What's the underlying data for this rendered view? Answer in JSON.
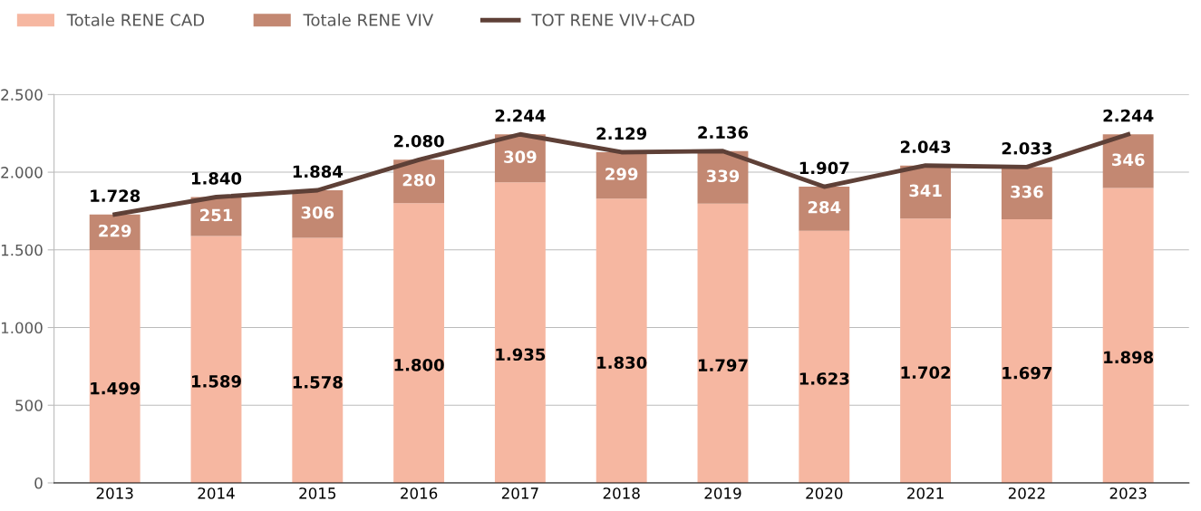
{
  "chart_data": {
    "type": "bar",
    "stacked": true,
    "categories": [
      "2013",
      "2014",
      "2015",
      "2016",
      "2017",
      "2018",
      "2019",
      "2020",
      "2021",
      "2022",
      "2023"
    ],
    "series": [
      {
        "name": "Totale RENE CAD",
        "color": "#f6b7a1",
        "values": [
          1499,
          1589,
          1578,
          1800,
          1935,
          1830,
          1797,
          1623,
          1702,
          1697,
          1898
        ],
        "value_labels": [
          "1.499",
          "1.589",
          "1.578",
          "1.800",
          "1.935",
          "1.830",
          "1.797",
          "1.623",
          "1.702",
          "1.697",
          "1.898"
        ]
      },
      {
        "name": "Totale RENE VIV",
        "color": "#c38872",
        "values": [
          229,
          251,
          306,
          280,
          309,
          299,
          339,
          284,
          341,
          336,
          346
        ],
        "value_labels": [
          "229",
          "251",
          "306",
          "280",
          "309",
          "299",
          "339",
          "284",
          "341",
          "336",
          "346"
        ]
      },
      {
        "name": "TOT RENE VIV+CAD",
        "type": "line",
        "color": "#5e4037",
        "values": [
          1728,
          1840,
          1884,
          2080,
          2244,
          2129,
          2136,
          1907,
          2043,
          2033,
          2244
        ],
        "value_labels": [
          "1.728",
          "1.840",
          "1.884",
          "2.080",
          "2.244",
          "2.129",
          "2.136",
          "1.907",
          "2.043",
          "2.033",
          "2.244"
        ]
      }
    ],
    "ylim": [
      0,
      2500
    ],
    "yticks": [
      0,
      500,
      {
        "value": 1000,
        "label": "1.000"
      },
      {
        "value": 1500,
        "label": "1.500"
      },
      {
        "value": 2000,
        "label": "2.000"
      },
      {
        "value": 2500,
        "label": "2.500"
      }
    ],
    "grid": "y",
    "legend": "top left",
    "marker": "none",
    "line_style": "solid"
  }
}
